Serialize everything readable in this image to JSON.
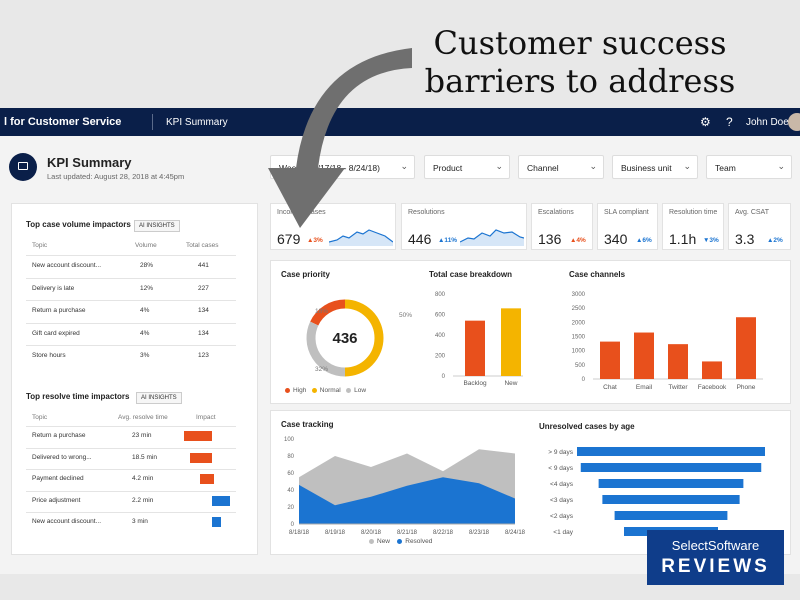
{
  "headline": {
    "line1": "Customer success",
    "line2": "barriers to address"
  },
  "topbar": {
    "app_title": "l for Customer Service",
    "breadcrumb": "KPI Summary",
    "user_name": "John Doe"
  },
  "header": {
    "title": "KPI Summary",
    "last_updated": "Last updated: August 28, 2018 at 4:45pm"
  },
  "filters": [
    {
      "label": "Week 3 (8/17/18 - 8/24/18)"
    },
    {
      "label": "Product"
    },
    {
      "label": "Channel"
    },
    {
      "label": "Business unit"
    },
    {
      "label": "Team"
    }
  ],
  "volume_impactors": {
    "title": "Top case volume impactors",
    "ai_label": "AI INSIGHTS",
    "headers": [
      "Topic",
      "Volume",
      "Total cases"
    ],
    "rows": [
      {
        "topic": "New account discount...",
        "volume": "28%",
        "total": "441"
      },
      {
        "topic": "Delivery is late",
        "volume": "12%",
        "total": "227"
      },
      {
        "topic": "Return a purchase",
        "volume": "4%",
        "total": "134"
      },
      {
        "topic": "Gift card expired",
        "volume": "4%",
        "total": "134"
      },
      {
        "topic": "Store hours",
        "volume": "3%",
        "total": "123"
      }
    ]
  },
  "resolve_impactors": {
    "title": "Top resolve time impactors",
    "ai_label": "AI INSIGHTS",
    "headers": [
      "Topic",
      "Avg. resolve time",
      "Impact"
    ],
    "rows": [
      {
        "topic": "Return a purchase",
        "time": "23 min"
      },
      {
        "topic": "Delivered to wrong...",
        "time": "18.5 min"
      },
      {
        "topic": "Payment declined",
        "time": "4.2 min"
      },
      {
        "topic": "Price adjustment",
        "time": "2.2 min"
      },
      {
        "topic": "New account discount...",
        "time": "3 min"
      }
    ]
  },
  "kpi_tiles": [
    {
      "label": "Incoming cases",
      "value": "679",
      "delta": "▲3%",
      "delta_color": "#e8501c"
    },
    {
      "label": "Resolutions",
      "value": "446",
      "delta": "▲11%",
      "delta_color": "#1b74d1"
    },
    {
      "label": "Escalations",
      "value": "136",
      "delta": "▲4%",
      "delta_color": "#e8501c"
    },
    {
      "label": "SLA compliant",
      "value": "340",
      "delta": "▲6%",
      "delta_color": "#1b74d1"
    },
    {
      "label": "Resolution time",
      "value": "1.1h",
      "delta": "▼3%",
      "delta_color": "#1b74d1"
    },
    {
      "label": "Avg. CSAT",
      "value": "3.3",
      "delta": "▲2%",
      "delta_color": "#1b74d1"
    }
  ],
  "case_priority": {
    "title": "Case priority",
    "center_value": "436",
    "pct_high": "18%",
    "pct_normal": "50%",
    "pct_low": "32%",
    "legend": [
      "High",
      "Normal",
      "Low"
    ]
  },
  "total_breakdown": {
    "title": "Total case breakdown",
    "yticks": [
      "800",
      "600",
      "400",
      "200",
      "0"
    ],
    "categories": [
      "Backlog",
      "New"
    ]
  },
  "case_channels": {
    "title": "Case channels",
    "yticks": [
      "3000",
      "2500",
      "2000",
      "1500",
      "1000",
      "500",
      "0"
    ],
    "categories": [
      "Chat",
      "Email",
      "Twitter",
      "Facebook",
      "Phone"
    ]
  },
  "case_tracking": {
    "title": "Case tracking",
    "yticks": [
      "100",
      "80",
      "60",
      "40",
      "20",
      "0"
    ],
    "xticks": [
      "8/18/18",
      "8/19/18",
      "8/20/18",
      "8/21/18",
      "8/22/18",
      "8/23/18",
      "8/24/18"
    ],
    "legend": [
      "New",
      "Resolved"
    ]
  },
  "unresolved": {
    "title": "Unresolved cases by age",
    "categories": [
      "> 9 days",
      "< 9 days",
      "<4 days",
      "<3 days",
      "<2 days",
      "<1 day"
    ]
  },
  "brand": {
    "line1": "SelectSoftware",
    "line2": "REVIEWS"
  },
  "colors": {
    "accent_orange": "#e8501c",
    "accent_blue": "#1b74d1",
    "yellow": "#f4b400",
    "navy": "#0a1f49",
    "gray": "#bfbfbf"
  },
  "chart_data": [
    {
      "type": "pie",
      "title": "Case priority",
      "labels": [
        "High",
        "Normal",
        "Low"
      ],
      "values": [
        18,
        50,
        32
      ],
      "colors": [
        "#e8501c",
        "#f4b400",
        "#bfbfbf"
      ]
    },
    {
      "type": "bar",
      "title": "Total case breakdown",
      "categories": [
        "Backlog",
        "New"
      ],
      "values": [
        540,
        660
      ],
      "colors": [
        "#e8501c",
        "#f4b400"
      ],
      "ylim": [
        0,
        800
      ]
    },
    {
      "type": "bar",
      "title": "Case channels",
      "categories": [
        "Chat",
        "Email",
        "Twitter",
        "Facebook",
        "Phone"
      ],
      "values": [
        1320,
        1640,
        1230,
        620,
        2180
      ],
      "ylim": [
        0,
        3000
      ]
    },
    {
      "type": "area",
      "title": "Case tracking",
      "x": [
        "8/18/18",
        "8/19/18",
        "8/20/18",
        "8/21/18",
        "8/22/18",
        "8/23/18",
        "8/24/18"
      ],
      "series": [
        {
          "name": "New",
          "values": [
            55,
            80,
            67,
            83,
            62,
            88,
            83
          ]
        },
        {
          "name": "Resolved",
          "values": [
            46,
            22,
            32,
            45,
            55,
            48,
            30
          ]
        }
      ],
      "ylim": [
        0,
        100
      ]
    },
    {
      "type": "bar",
      "title": "Unresolved cases by age",
      "categories": [
        "> 9 days",
        "< 9 days",
        "<4 days",
        "<3 days",
        "<2 days",
        "<1 day"
      ],
      "values": [
        100,
        96,
        77,
        73,
        60,
        50
      ]
    }
  ]
}
